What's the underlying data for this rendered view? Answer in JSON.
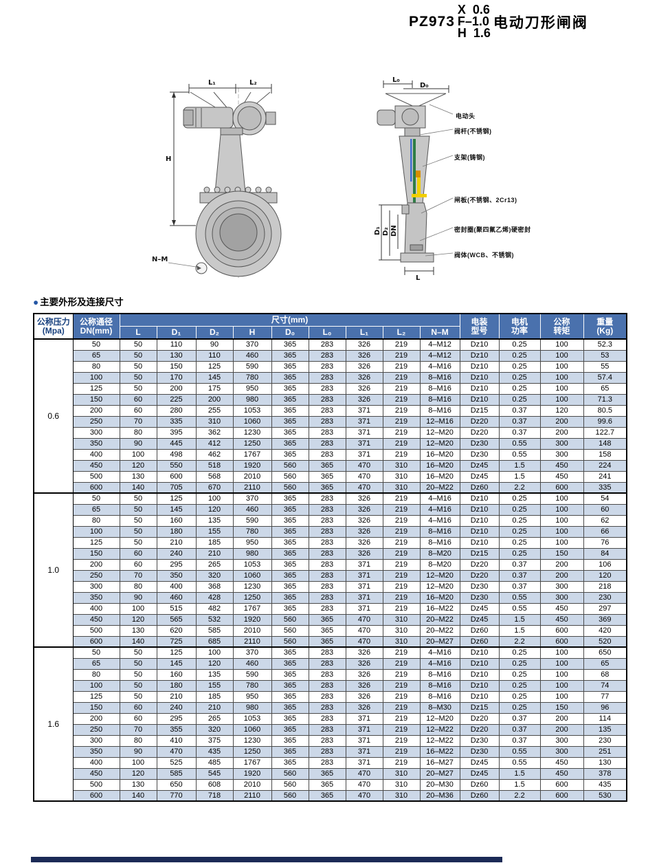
{
  "title": {
    "model_prefix": "PZ973",
    "variants": [
      "X  0.6",
      "F–1.0",
      "H  1.6"
    ],
    "name": "电动刀形闸阀"
  },
  "section": {
    "bullet": "●",
    "title": "主要外形及连接尺寸"
  },
  "diagram": {
    "front_labels": {
      "l1": "L₁",
      "l2": "L₂",
      "h": "H",
      "nm": "N–M"
    },
    "side_labels": {
      "l0": "L₀",
      "d0": "D₀",
      "d1": "D₁",
      "d2": "D₂",
      "dn": "DN",
      "l": "L"
    },
    "annotations": [
      "电动头",
      "阀杆(不锈钢)",
      "支架(铸钢)",
      "闸板(不锈钢、2Cr13)",
      "密封圈(聚四氟乙烯)硬密封",
      "阀体(WCB、不锈钢)"
    ]
  },
  "table": {
    "header": {
      "pressure": "公称压力\n(Mpa)",
      "dn": "公称通径\nDN(mm)",
      "size_group": "尺寸(mm)",
      "size_cols": [
        "L",
        "D₁",
        "D₂",
        "H",
        "D₀",
        "L₀",
        "L₁",
        "L₂",
        "N–M"
      ],
      "motor_model": "电装\n型号",
      "motor_power": "电机\n功率",
      "torque": "公称\n转矩",
      "weight": "重量\n(Kg)"
    },
    "groups": [
      {
        "pressure": "0.6",
        "rows": [
          [
            "50",
            "50",
            "110",
            "90",
            "370",
            "365",
            "283",
            "326",
            "219",
            "4–M12",
            "Dz10",
            "0.25",
            "100",
            "52.3"
          ],
          [
            "65",
            "50",
            "130",
            "110",
            "460",
            "365",
            "283",
            "326",
            "219",
            "4–M12",
            "Dz10",
            "0.25",
            "100",
            "53"
          ],
          [
            "80",
            "50",
            "150",
            "125",
            "590",
            "365",
            "283",
            "326",
            "219",
            "4–M16",
            "Dz10",
            "0.25",
            "100",
            "55"
          ],
          [
            "100",
            "50",
            "170",
            "145",
            "780",
            "365",
            "283",
            "326",
            "219",
            "8–M16",
            "Dz10",
            "0.25",
            "100",
            "57.4"
          ],
          [
            "125",
            "50",
            "200",
            "175",
            "950",
            "365",
            "283",
            "326",
            "219",
            "8–M16",
            "Dz10",
            "0.25",
            "100",
            "65"
          ],
          [
            "150",
            "60",
            "225",
            "200",
            "980",
            "365",
            "283",
            "326",
            "219",
            "8–M16",
            "Dz10",
            "0.25",
            "100",
            "71.3"
          ],
          [
            "200",
            "60",
            "280",
            "255",
            "1053",
            "365",
            "283",
            "371",
            "219",
            "8–M16",
            "Dz15",
            "0.37",
            "120",
            "80.5"
          ],
          [
            "250",
            "70",
            "335",
            "310",
            "1060",
            "365",
            "283",
            "371",
            "219",
            "12–M16",
            "Dz20",
            "0.37",
            "200",
            "99.6"
          ],
          [
            "300",
            "80",
            "395",
            "362",
            "1230",
            "365",
            "283",
            "371",
            "219",
            "12–M20",
            "Dz20",
            "0.37",
            "200",
            "122.7"
          ],
          [
            "350",
            "90",
            "445",
            "412",
            "1250",
            "365",
            "283",
            "371",
            "219",
            "12–M20",
            "Dz30",
            "0.55",
            "300",
            "148"
          ],
          [
            "400",
            "100",
            "498",
            "462",
            "1767",
            "365",
            "283",
            "371",
            "219",
            "16–M20",
            "Dz30",
            "0.55",
            "300",
            "158"
          ],
          [
            "450",
            "120",
            "550",
            "518",
            "1920",
            "560",
            "365",
            "470",
            "310",
            "16–M20",
            "Dz45",
            "1.5",
            "450",
            "224"
          ],
          [
            "500",
            "130",
            "600",
            "568",
            "2010",
            "560",
            "365",
            "470",
            "310",
            "16–M20",
            "Dz45",
            "1.5",
            "450",
            "241"
          ],
          [
            "600",
            "140",
            "705",
            "670",
            "2110",
            "560",
            "365",
            "470",
            "310",
            "20–M22",
            "Dz60",
            "2.2",
            "600",
            "335"
          ]
        ]
      },
      {
        "pressure": "1.0",
        "rows": [
          [
            "50",
            "50",
            "125",
            "100",
            "370",
            "365",
            "283",
            "326",
            "219",
            "4–M16",
            "Dz10",
            "0.25",
            "100",
            "54"
          ],
          [
            "65",
            "50",
            "145",
            "120",
            "460",
            "365",
            "283",
            "326",
            "219",
            "4–M16",
            "Dz10",
            "0.25",
            "100",
            "60"
          ],
          [
            "80",
            "50",
            "160",
            "135",
            "590",
            "365",
            "283",
            "326",
            "219",
            "4–M16",
            "Dz10",
            "0.25",
            "100",
            "62"
          ],
          [
            "100",
            "50",
            "180",
            "155",
            "780",
            "365",
            "283",
            "326",
            "219",
            "8–M16",
            "Dz10",
            "0.25",
            "100",
            "66"
          ],
          [
            "125",
            "50",
            "210",
            "185",
            "950",
            "365",
            "283",
            "326",
            "219",
            "8–M16",
            "Dz10",
            "0.25",
            "100",
            "76"
          ],
          [
            "150",
            "60",
            "240",
            "210",
            "980",
            "365",
            "283",
            "326",
            "219",
            "8–M20",
            "Dz15",
            "0.25",
            "150",
            "84"
          ],
          [
            "200",
            "60",
            "295",
            "265",
            "1053",
            "365",
            "283",
            "371",
            "219",
            "8–M20",
            "Dz20",
            "0.37",
            "200",
            "106"
          ],
          [
            "250",
            "70",
            "350",
            "320",
            "1060",
            "365",
            "283",
            "371",
            "219",
            "12–M20",
            "Dz20",
            "0.37",
            "200",
            "120"
          ],
          [
            "300",
            "80",
            "400",
            "368",
            "1230",
            "365",
            "283",
            "371",
            "219",
            "12–M20",
            "Dz30",
            "0.37",
            "300",
            "218"
          ],
          [
            "350",
            "90",
            "460",
            "428",
            "1250",
            "365",
            "283",
            "371",
            "219",
            "16–M20",
            "Dz30",
            "0.55",
            "300",
            "230"
          ],
          [
            "400",
            "100",
            "515",
            "482",
            "1767",
            "365",
            "283",
            "371",
            "219",
            "16–M22",
            "Dz45",
            "0.55",
            "450",
            "297"
          ],
          [
            "450",
            "120",
            "565",
            "532",
            "1920",
            "560",
            "365",
            "470",
            "310",
            "20–M22",
            "Dz45",
            "1.5",
            "450",
            "369"
          ],
          [
            "500",
            "130",
            "620",
            "585",
            "2010",
            "560",
            "365",
            "470",
            "310",
            "20–M22",
            "Dz60",
            "1.5",
            "600",
            "420"
          ],
          [
            "600",
            "140",
            "725",
            "685",
            "2110",
            "560",
            "365",
            "470",
            "310",
            "20–M27",
            "Dz60",
            "2.2",
            "600",
            "520"
          ]
        ]
      },
      {
        "pressure": "1.6",
        "rows": [
          [
            "50",
            "50",
            "125",
            "100",
            "370",
            "365",
            "283",
            "326",
            "219",
            "4–M16",
            "Dz10",
            "0.25",
            "100",
            "650"
          ],
          [
            "65",
            "50",
            "145",
            "120",
            "460",
            "365",
            "283",
            "326",
            "219",
            "4–M16",
            "Dz10",
            "0.25",
            "100",
            "65"
          ],
          [
            "80",
            "50",
            "160",
            "135",
            "590",
            "365",
            "283",
            "326",
            "219",
            "8–M16",
            "Dz10",
            "0.25",
            "100",
            "68"
          ],
          [
            "100",
            "50",
            "180",
            "155",
            "780",
            "365",
            "283",
            "326",
            "219",
            "8–M16",
            "Dz10",
            "0.25",
            "100",
            "74"
          ],
          [
            "125",
            "50",
            "210",
            "185",
            "950",
            "365",
            "283",
            "326",
            "219",
            "8–M16",
            "Dz10",
            "0.25",
            "100",
            "77"
          ],
          [
            "150",
            "60",
            "240",
            "210",
            "980",
            "365",
            "283",
            "326",
            "219",
            "8–M30",
            "Dz15",
            "0.25",
            "150",
            "96"
          ],
          [
            "200",
            "60",
            "295",
            "265",
            "1053",
            "365",
            "283",
            "371",
            "219",
            "12–M20",
            "Dz20",
            "0.37",
            "200",
            "114"
          ],
          [
            "250",
            "70",
            "355",
            "320",
            "1060",
            "365",
            "283",
            "371",
            "219",
            "12–M22",
            "Dz20",
            "0.37",
            "200",
            "135"
          ],
          [
            "300",
            "80",
            "410",
            "375",
            "1230",
            "365",
            "283",
            "371",
            "219",
            "12–M22",
            "Dz30",
            "0.37",
            "300",
            "230"
          ],
          [
            "350",
            "90",
            "470",
            "435",
            "1250",
            "365",
            "283",
            "371",
            "219",
            "16–M22",
            "Dz30",
            "0.55",
            "300",
            "251"
          ],
          [
            "400",
            "100",
            "525",
            "485",
            "1767",
            "365",
            "283",
            "371",
            "219",
            "16–M27",
            "Dz45",
            "0.55",
            "450",
            "130"
          ],
          [
            "450",
            "120",
            "585",
            "545",
            "1920",
            "560",
            "365",
            "470",
            "310",
            "20–M27",
            "Dz45",
            "1.5",
            "450",
            "378"
          ],
          [
            "500",
            "130",
            "650",
            "608",
            "2010",
            "560",
            "365",
            "470",
            "310",
            "20–M30",
            "Dz60",
            "1.5",
            "600",
            "435"
          ],
          [
            "600",
            "140",
            "770",
            "718",
            "2110",
            "560",
            "365",
            "470",
            "310",
            "20–M36",
            "Dz60",
            "2.2",
            "600",
            "530"
          ]
        ]
      }
    ]
  },
  "colors": {
    "header_blue": "#4a71ad",
    "row_stripe": "#ccd8e8",
    "pressure_text": "#17407e",
    "bullet_blue": "#2456a4",
    "footer_bar": "#1b2a56",
    "gate_green": "#2f7d46",
    "stem_blue": "#3f6dd0",
    "seal_yellow": "#f2cf00"
  }
}
